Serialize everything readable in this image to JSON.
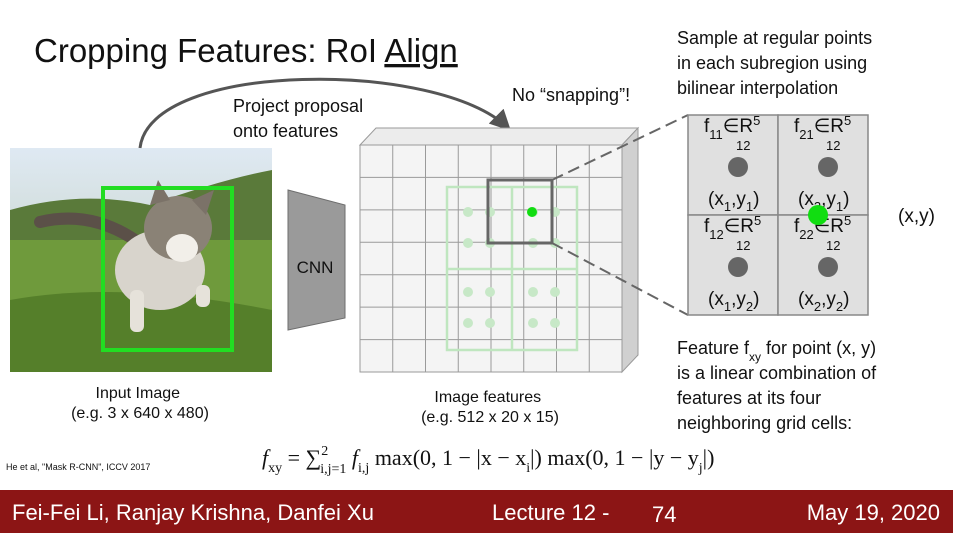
{
  "title": {
    "prefix": "Cropping Features: RoI",
    "emphasis": "Align"
  },
  "annotations": {
    "project": [
      "Project proposal",
      "onto features"
    ],
    "no_snapping": "No “snapping”!",
    "sample": [
      "Sample at regular points",
      "in each subregion using",
      "bilinear interpolation"
    ],
    "point": "(x,y)"
  },
  "cnn": "CNN",
  "input_caption": [
    "Input Image",
    "(e.g. 3 x 640 x 480)"
  ],
  "features_caption": [
    "Image features",
    "(e.g. 512 x 20 x 15)"
  ],
  "cells": [
    {
      "f": "f",
      "index": "11",
      "set": "∈R",
      "power": "5",
      "below": "12",
      "point": [
        "(x",
        "1",
        ",y",
        "1",
        ")"
      ]
    },
    {
      "f": "f",
      "index": "21",
      "set": "∈R",
      "power": "5",
      "below": "12",
      "point": [
        "(x",
        "2",
        ",y",
        "1",
        ")"
      ]
    },
    {
      "f": "f",
      "index": "12",
      "set": "∈R",
      "power": "5",
      "below": "12",
      "point": [
        "(x",
        "1",
        ",y",
        "2",
        ")"
      ]
    },
    {
      "f": "f",
      "index": "22",
      "set": "∈R",
      "power": "5",
      "below": "12",
      "point": [
        "(x",
        "2",
        ",y",
        "2",
        ")"
      ]
    }
  ],
  "explanation": {
    "first": {
      "text": "Feature f",
      "sub": "xy",
      "rest": " for point (x, y)"
    },
    "lines": [
      "is a linear combination of",
      "features at its four",
      "neighboring grid cells:"
    ]
  },
  "formula": [
    "f",
    "xy",
    " = ∑",
    "2",
    "i,j=1",
    " f",
    "i,j",
    " max(0, 1 − |x − x",
    "i",
    "|) max(0, 1 − |y − y",
    "j",
    "|)"
  ],
  "citation": "He et al, \"Mask R-CNN\", ICCV 2017",
  "footer": {
    "authors": "Fei-Fei Li, Ranjay Krishna, Danfei Xu",
    "lecture": "Lecture 12 -",
    "page": "74",
    "date": "May 19, 2020"
  }
}
